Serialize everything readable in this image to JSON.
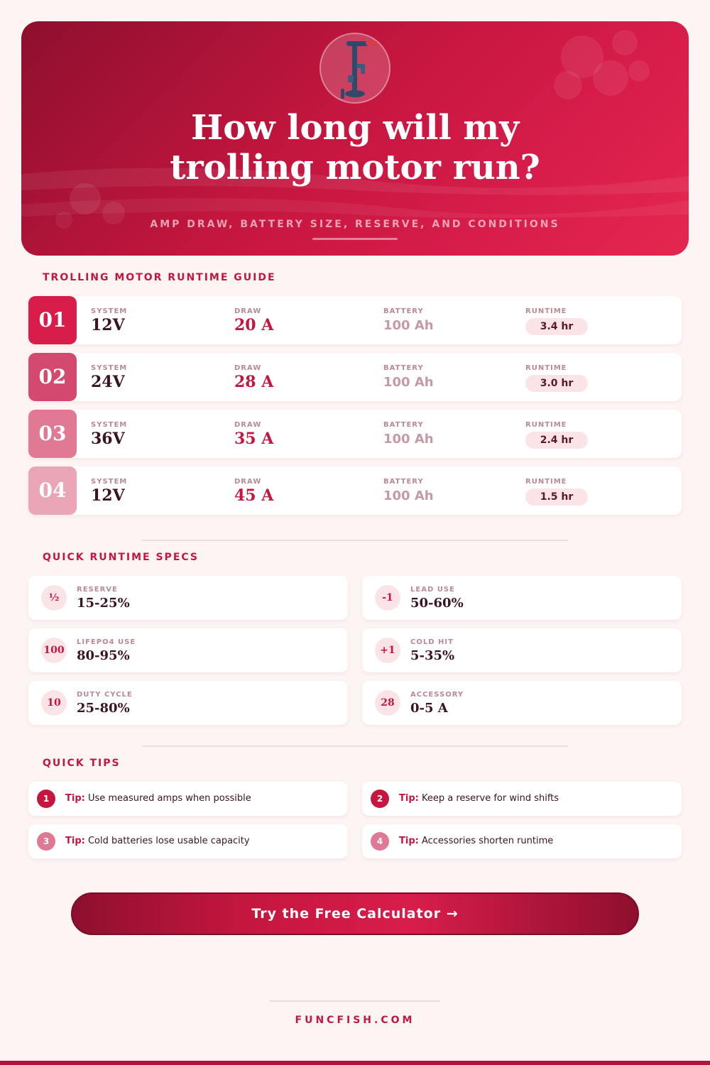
{
  "hero": {
    "title_line1": "How long will my",
    "title_line2": "trolling motor run?",
    "subtitle": "AMP DRAW, BATTERY SIZE, RESERVE, AND CONDITIONS",
    "icon": "trolling-motor-icon"
  },
  "guide": {
    "title": "TROLLING MOTOR RUNTIME GUIDE",
    "labels": {
      "system": "SYSTEM",
      "draw": "DRAW",
      "battery": "BATTERY",
      "runtime": "RUNTIME"
    },
    "rows": [
      {
        "num": "01",
        "system": "12V",
        "draw": "20 A",
        "battery": "100 Ah",
        "runtime": "3.4 hr",
        "color": "#d81d4b"
      },
      {
        "num": "02",
        "system": "24V",
        "draw": "28 A",
        "battery": "100 Ah",
        "runtime": "3.0 hr",
        "color": "#d34a6e"
      },
      {
        "num": "03",
        "system": "36V",
        "draw": "35 A",
        "battery": "100 Ah",
        "runtime": "2.4 hr",
        "color": "#e07a94"
      },
      {
        "num": "04",
        "system": "12V",
        "draw": "45 A",
        "battery": "100 Ah",
        "runtime": "1.5 hr",
        "color": "#eaa5b6"
      }
    ]
  },
  "specs": {
    "title": "QUICK RUNTIME SPECS",
    "items": [
      {
        "badge": "½",
        "label": "RESERVE",
        "value": "15-25%"
      },
      {
        "badge": "-1",
        "label": "LEAD USE",
        "value": "50-60%"
      },
      {
        "badge": "100",
        "label": "LIFEPO4 USE",
        "value": "80-95%"
      },
      {
        "badge": "+1",
        "label": "COLD HIT",
        "value": "5-35%"
      },
      {
        "badge": "10",
        "label": "DUTY CYCLE",
        "value": "25-80%"
      },
      {
        "badge": "28",
        "label": "ACCESSORY",
        "value": "0-5 A"
      }
    ]
  },
  "tips": {
    "title": "QUICK TIPS",
    "prefix": "Tip:",
    "items": [
      {
        "n": "1",
        "text": "Use measured amps when possible",
        "color": "#c4163f"
      },
      {
        "n": "2",
        "text": "Keep a reserve for wind shifts",
        "color": "#c4163f"
      },
      {
        "n": "3",
        "text": "Cold batteries lose usable capacity",
        "color": "#e07a94"
      },
      {
        "n": "4",
        "text": "Accessories shorten runtime",
        "color": "#e07a94"
      }
    ]
  },
  "cta": {
    "label": "Try the Free Calculator →"
  },
  "footer": {
    "site": "FUNCFISH.COM"
  }
}
